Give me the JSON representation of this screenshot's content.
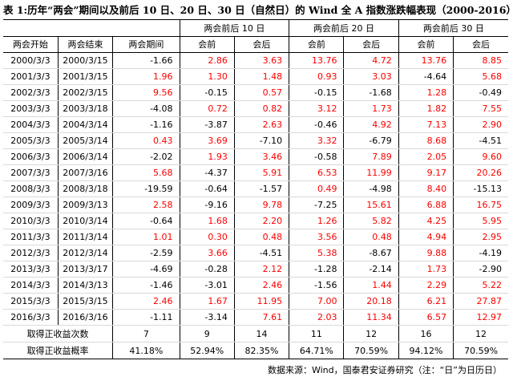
{
  "title": "表 1:历年“两会”期间以及前后 10 日、20 日、30 日（自然日）的 Wind 全 A 指数涨跌幅表现（2000-2016）",
  "header": {
    "group_10": "两会前后 10 日",
    "group_20": "两会前后 20 日",
    "group_30": "两会前后 30 日",
    "start": "两会开始",
    "end": "两会结束",
    "during": "两会期间",
    "before": "会前",
    "after": "会后"
  },
  "colors": {
    "positive": "#ff0000",
    "negative": "#000000"
  },
  "rows": [
    {
      "start": "2000/3/3",
      "end": "2000/3/15",
      "vals": [
        "-1.66",
        "2.86",
        "3.63",
        "13.76",
        "4.72",
        "13.76",
        "8.85"
      ]
    },
    {
      "start": "2001/3/3",
      "end": "2001/3/15",
      "vals": [
        "1.96",
        "1.30",
        "1.48",
        "0.93",
        "3.03",
        "-4.64",
        "5.68"
      ]
    },
    {
      "start": "2002/3/3",
      "end": "2002/3/15",
      "vals": [
        "9.56",
        "-0.15",
        "0.57",
        "-0.15",
        "-1.68",
        "1.28",
        "-0.49"
      ]
    },
    {
      "start": "2003/3/3",
      "end": "2003/3/18",
      "vals": [
        "-4.08",
        "0.72",
        "0.82",
        "3.12",
        "1.73",
        "1.82",
        "7.55"
      ]
    },
    {
      "start": "2004/3/3",
      "end": "2004/3/14",
      "vals": [
        "-1.16",
        "-3.87",
        "2.63",
        "-0.46",
        "4.92",
        "7.13",
        "2.90"
      ]
    },
    {
      "start": "2005/3/3",
      "end": "2005/3/14",
      "vals": [
        "0.43",
        "3.69",
        "-7.10",
        "3.32",
        "-6.79",
        "8.68",
        "-4.51"
      ]
    },
    {
      "start": "2006/3/3",
      "end": "2006/3/14",
      "vals": [
        "-2.02",
        "1.93",
        "3.46",
        "-0.58",
        "7.89",
        "2.05",
        "9.60"
      ]
    },
    {
      "start": "2007/3/3",
      "end": "2007/3/16",
      "vals": [
        "5.68",
        "-4.37",
        "5.91",
        "6.53",
        "11.99",
        "9.17",
        "20.26"
      ]
    },
    {
      "start": "2008/3/3",
      "end": "2008/3/18",
      "vals": [
        "-19.59",
        "-0.64",
        "-1.57",
        "0.49",
        "-4.98",
        "8.40",
        "-15.13"
      ]
    },
    {
      "start": "2009/3/3",
      "end": "2009/3/13",
      "vals": [
        "2.58",
        "-9.16",
        "9.78",
        "-7.25",
        "15.61",
        "6.88",
        "16.75"
      ]
    },
    {
      "start": "2010/3/3",
      "end": "2010/3/14",
      "vals": [
        "-0.64",
        "1.68",
        "2.20",
        "1.26",
        "5.82",
        "4.25",
        "5.95"
      ]
    },
    {
      "start": "2011/3/3",
      "end": "2011/3/14",
      "vals": [
        "1.01",
        "0.30",
        "0.48",
        "3.56",
        "0.48",
        "4.94",
        "2.95"
      ]
    },
    {
      "start": "2012/3/3",
      "end": "2012/3/14",
      "vals": [
        "-2.59",
        "3.66",
        "-4.51",
        "5.38",
        "-8.67",
        "9.88",
        "-4.19"
      ]
    },
    {
      "start": "2013/3/3",
      "end": "2013/3/17",
      "vals": [
        "-4.69",
        "-0.28",
        "2.12",
        "-1.28",
        "-2.14",
        "1.73",
        "-2.90"
      ]
    },
    {
      "start": "2014/3/3",
      "end": "2014/3/13",
      "vals": [
        "-1.46",
        "-3.01",
        "2.46",
        "-1.56",
        "1.44",
        "2.29",
        "5.22"
      ]
    },
    {
      "start": "2015/3/3",
      "end": "2015/3/15",
      "vals": [
        "2.46",
        "1.67",
        "11.95",
        "7.00",
        "20.18",
        "6.21",
        "27.87"
      ]
    },
    {
      "start": "2016/3/3",
      "end": "2016/3/16",
      "vals": [
        "-1.11",
        "-3.14",
        "7.61",
        "2.03",
        "11.34",
        "6.57",
        "12.97"
      ]
    }
  ],
  "footer": {
    "count_label": "取得正收益次数",
    "counts": [
      "7",
      "9",
      "14",
      "11",
      "12",
      "16",
      "12"
    ],
    "prob_label": "取得正收益概率",
    "probs": [
      "41.18%",
      "52.94%",
      "82.35%",
      "64.71%",
      "70.59%",
      "94.12%",
      "70.59%"
    ]
  },
  "source": "数据来源：Wind，国泰君安证券研究（注：“日”为日历日）"
}
